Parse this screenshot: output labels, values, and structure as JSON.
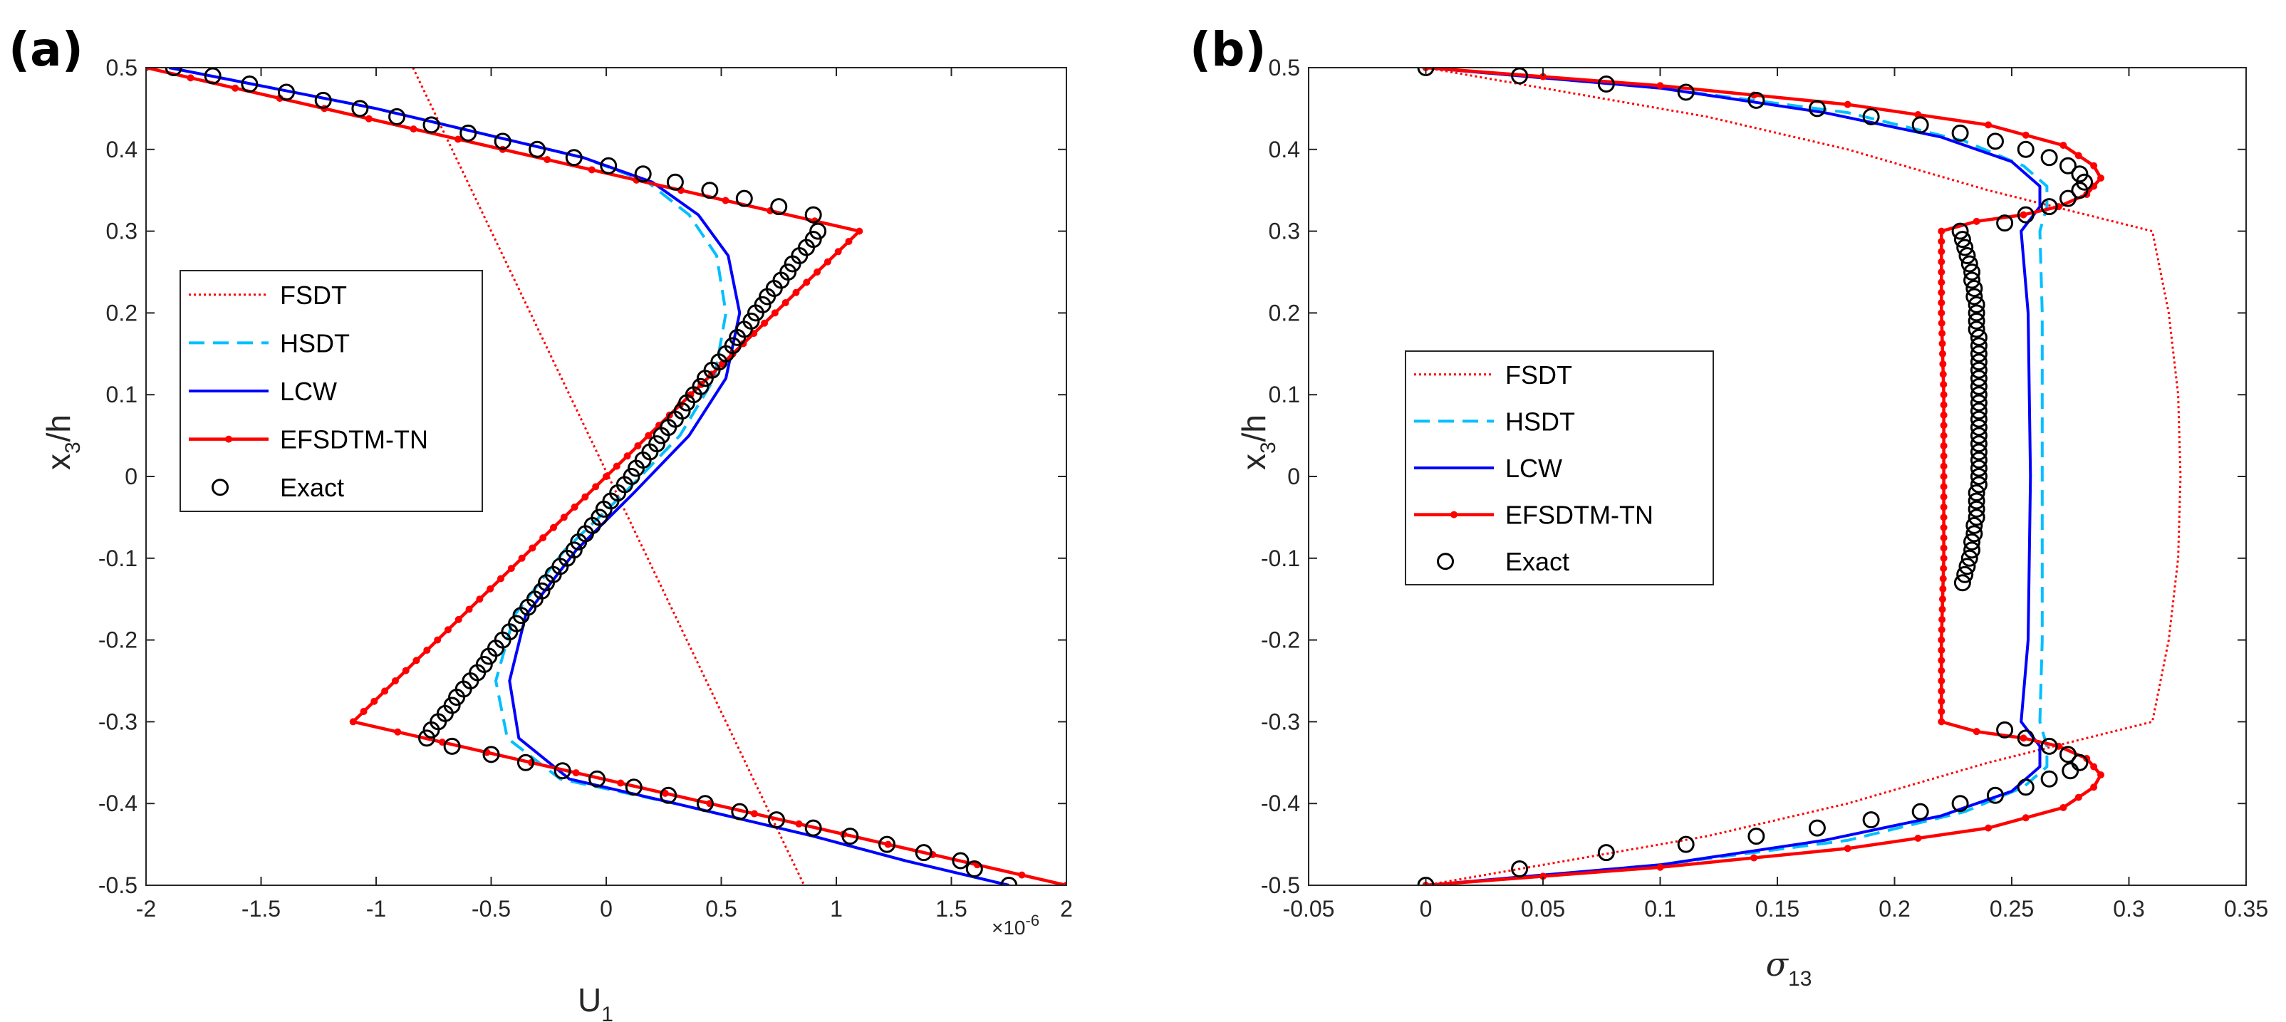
{
  "colors": {
    "FSDT": "#ff0000",
    "HSDT": "#00bfff",
    "LCW": "#0000ff",
    "EFSDTM-TN": "#ff0000",
    "Exact": "#000000"
  },
  "chart_data": [
    {
      "id": "a",
      "type": "line",
      "panel_label": "(a)",
      "xlabel": "U",
      "xlabel_sub": "1",
      "ylabel": "x",
      "ylabel_sub": "3",
      "ylabel_tail": "/h",
      "x_multiplier_base": "×10",
      "x_multiplier_exp": "-6",
      "xlim": [
        -2,
        2
      ],
      "ylim": [
        -0.5,
        0.5
      ],
      "xticks": [
        -2,
        -1.5,
        -1,
        -0.5,
        0,
        0.5,
        1,
        1.5,
        2
      ],
      "xtick_labels": [
        "-2",
        "-1.5",
        "-1",
        "-0.5",
        "0",
        "0.5",
        "1",
        "1.5",
        "2"
      ],
      "yticks": [
        -0.5,
        -0.4,
        -0.3,
        -0.2,
        -0.1,
        0,
        0.1,
        0.2,
        0.3,
        0.4,
        0.5
      ],
      "ytick_labels": [
        "-0.5",
        "-0.4",
        "-0.3",
        "-0.2",
        "-0.1",
        "0",
        "0.1",
        "0.2",
        "0.3",
        "0.4",
        "0.5"
      ],
      "legend": [
        "FSDT",
        "HSDT",
        "LCW",
        "EFSDTM-TN",
        "Exact"
      ],
      "legend_location": "middle-left",
      "series": [
        {
          "name": "FSDT",
          "style": "dotted",
          "points": [
            [
              -0.84,
              0.5
            ],
            [
              0.86,
              -0.5
            ]
          ]
        },
        {
          "name": "HSDT",
          "style": "dashed",
          "points": [
            [
              -1.9,
              0.5
            ],
            [
              -1.0,
              0.45
            ],
            [
              -0.4,
              0.41
            ],
            [
              -0.1,
              0.39
            ],
            [
              0.18,
              0.36
            ],
            [
              0.36,
              0.32
            ],
            [
              0.48,
              0.27
            ],
            [
              0.52,
              0.2
            ],
            [
              0.47,
              0.12
            ],
            [
              0.32,
              0.05
            ],
            [
              0.08,
              -0.02
            ],
            [
              -0.18,
              -0.09
            ],
            [
              -0.4,
              -0.17
            ],
            [
              -0.48,
              -0.25
            ],
            [
              -0.43,
              -0.32
            ],
            [
              -0.2,
              -0.37
            ],
            [
              0.3,
              -0.4
            ],
            [
              0.9,
              -0.44
            ],
            [
              1.3,
              -0.47
            ],
            [
              1.75,
              -0.5
            ]
          ]
        },
        {
          "name": "LCW",
          "style": "solid",
          "points": [
            [
              -1.9,
              0.5
            ],
            [
              -1.0,
              0.45
            ],
            [
              -0.4,
              0.41
            ],
            [
              -0.1,
              0.39
            ],
            [
              0.2,
              0.36
            ],
            [
              0.4,
              0.32
            ],
            [
              0.53,
              0.27
            ],
            [
              0.58,
              0.2
            ],
            [
              0.52,
              0.12
            ],
            [
              0.36,
              0.05
            ],
            [
              0.12,
              -0.02
            ],
            [
              -0.13,
              -0.09
            ],
            [
              -0.35,
              -0.17
            ],
            [
              -0.42,
              -0.25
            ],
            [
              -0.38,
              -0.32
            ],
            [
              -0.16,
              -0.37
            ],
            [
              0.3,
              -0.4
            ],
            [
              0.9,
              -0.44
            ],
            [
              1.3,
              -0.47
            ],
            [
              1.75,
              -0.5
            ]
          ]
        },
        {
          "name": "EFSDTM-TN",
          "style": "solid-dots",
          "points": [
            [
              -2,
              0.5
            ],
            [
              1.1,
              0.3
            ],
            [
              -1.1,
              -0.3
            ],
            [
              2,
              -0.5
            ]
          ]
        },
        {
          "name": "Exact",
          "style": "circles",
          "x": [
            -1.88,
            -1.71,
            -1.55,
            -1.39,
            -1.23,
            -1.07,
            -0.91,
            -0.76,
            -0.6,
            -0.45,
            -0.3,
            -0.14,
            0.01,
            0.16,
            0.3,
            0.45,
            0.6,
            0.75,
            0.9,
            0.92,
            0.9,
            0.87,
            0.84,
            0.81,
            0.79,
            0.76,
            0.73,
            0.7,
            0.68,
            0.65,
            0.63,
            0.6,
            0.57,
            0.55,
            0.52,
            0.49,
            0.46,
            0.43,
            0.41,
            0.38,
            0.35,
            0.33,
            0.3,
            0.27,
            0.24,
            0.22,
            0.19,
            0.16,
            0.13,
            0.11,
            0.08,
            0.05,
            0.02,
            -0.01,
            -0.03,
            -0.06,
            -0.09,
            -0.12,
            -0.14,
            -0.17,
            -0.2,
            -0.23,
            -0.26,
            -0.28,
            -0.31,
            -0.34,
            -0.37,
            -0.39,
            -0.42,
            -0.45,
            -0.48,
            -0.51,
            -0.53,
            -0.56,
            -0.59,
            -0.62,
            -0.65,
            -0.67,
            -0.7,
            -0.73,
            -0.76,
            -0.78,
            -0.67,
            -0.5,
            -0.35,
            -0.19,
            -0.04,
            0.12,
            0.27,
            0.43,
            0.58,
            0.74,
            0.9,
            1.06,
            1.22,
            1.38,
            1.54,
            1.6,
            1.75
          ],
          "y": [
            0.5,
            0.49,
            0.48,
            0.47,
            0.46,
            0.45,
            0.44,
            0.43,
            0.42,
            0.41,
            0.4,
            0.39,
            0.38,
            0.37,
            0.36,
            0.35,
            0.34,
            0.33,
            0.32,
            0.3,
            0.29,
            0.28,
            0.27,
            0.26,
            0.25,
            0.24,
            0.23,
            0.22,
            0.21,
            0.2,
            0.19,
            0.18,
            0.17,
            0.16,
            0.15,
            0.14,
            0.13,
            0.12,
            0.11,
            0.1,
            0.09,
            0.08,
            0.07,
            0.06,
            0.05,
            0.04,
            0.03,
            0.02,
            0.01,
            0.0,
            -0.01,
            -0.02,
            -0.03,
            -0.04,
            -0.05,
            -0.06,
            -0.07,
            -0.08,
            -0.09,
            -0.1,
            -0.11,
            -0.12,
            -0.13,
            -0.14,
            -0.15,
            -0.16,
            -0.17,
            -0.18,
            -0.19,
            -0.2,
            -0.21,
            -0.22,
            -0.23,
            -0.24,
            -0.25,
            -0.26,
            -0.27,
            -0.28,
            -0.29,
            -0.3,
            -0.31,
            -0.32,
            -0.33,
            -0.34,
            -0.35,
            -0.36,
            -0.37,
            -0.38,
            -0.39,
            -0.4,
            -0.41,
            -0.42,
            -0.43,
            -0.44,
            -0.45,
            -0.46,
            -0.47,
            -0.48,
            -0.5
          ]
        }
      ]
    },
    {
      "id": "b",
      "type": "line",
      "panel_label": "(b)",
      "xlabel": "σ",
      "xlabel_sub": "13",
      "ylabel": "x",
      "ylabel_sub": "3",
      "ylabel_tail": "/h",
      "xlim": [
        -0.05,
        0.35
      ],
      "ylim": [
        -0.5,
        0.5
      ],
      "xticks": [
        -0.05,
        0,
        0.05,
        0.1,
        0.15,
        0.2,
        0.25,
        0.3,
        0.35
      ],
      "xtick_labels": [
        "-0.05",
        "0",
        "0.05",
        "0.1",
        "0.15",
        "0.2",
        "0.25",
        "0.3",
        "0.35"
      ],
      "yticks": [
        -0.5,
        -0.4,
        -0.3,
        -0.2,
        -0.1,
        0,
        0.1,
        0.2,
        0.3,
        0.4,
        0.5
      ],
      "ytick_labels": [
        "-0.5",
        "-0.4",
        "-0.3",
        "-0.2",
        "-0.1",
        "0",
        "0.1",
        "0.2",
        "0.3",
        "0.4",
        "0.5"
      ],
      "legend": [
        "FSDT",
        "HSDT",
        "LCW",
        "EFSDTM-TN",
        "Exact"
      ],
      "legend_location": "middle-left",
      "series": [
        {
          "name": "FSDT",
          "style": "dotted",
          "points": [
            [
              0,
              0.5
            ],
            [
              0.06,
              0.47
            ],
            [
              0.12,
              0.44
            ],
            [
              0.18,
              0.4
            ],
            [
              0.24,
              0.35
            ],
            [
              0.31,
              0.3
            ],
            [
              0.317,
              0.2
            ],
            [
              0.321,
              0.1
            ],
            [
              0.322,
              0.0
            ],
            [
              0.321,
              -0.1
            ],
            [
              0.317,
              -0.2
            ],
            [
              0.31,
              -0.3
            ],
            [
              0.24,
              -0.35
            ],
            [
              0.18,
              -0.4
            ],
            [
              0.12,
              -0.44
            ],
            [
              0.06,
              -0.47
            ],
            [
              0,
              -0.5
            ]
          ]
        },
        {
          "name": "HSDT",
          "style": "dashed",
          "points": [
            [
              0,
              0.5
            ],
            [
              0.1,
              0.475
            ],
            [
              0.18,
              0.445
            ],
            [
              0.23,
              0.41
            ],
            [
              0.255,
              0.38
            ],
            [
              0.265,
              0.355
            ],
            [
              0.265,
              0.33
            ],
            [
              0.262,
              0.3
            ],
            [
              0.263,
              0.2
            ],
            [
              0.263,
              0.0
            ],
            [
              0.263,
              -0.2
            ],
            [
              0.262,
              -0.3
            ],
            [
              0.265,
              -0.33
            ],
            [
              0.265,
              -0.355
            ],
            [
              0.255,
              -0.38
            ],
            [
              0.23,
              -0.41
            ],
            [
              0.18,
              -0.445
            ],
            [
              0.1,
              -0.475
            ],
            [
              0,
              -0.5
            ]
          ]
        },
        {
          "name": "LCW",
          "style": "solid",
          "points": [
            [
              0,
              0.5
            ],
            [
              0.1,
              0.475
            ],
            [
              0.17,
              0.445
            ],
            [
              0.22,
              0.415
            ],
            [
              0.25,
              0.385
            ],
            [
              0.262,
              0.355
            ],
            [
              0.262,
              0.33
            ],
            [
              0.254,
              0.3
            ],
            [
              0.257,
              0.2
            ],
            [
              0.258,
              0.0
            ],
            [
              0.257,
              -0.2
            ],
            [
              0.254,
              -0.3
            ],
            [
              0.262,
              -0.33
            ],
            [
              0.262,
              -0.355
            ],
            [
              0.25,
              -0.385
            ],
            [
              0.22,
              -0.415
            ],
            [
              0.17,
              -0.445
            ],
            [
              0.1,
              -0.475
            ],
            [
              0,
              -0.5
            ]
          ]
        },
        {
          "name": "EFSDTM-TN",
          "style": "solid-dots",
          "points": [
            [
              0,
              0.5
            ],
            [
              0.1,
              0.478
            ],
            [
              0.18,
              0.455
            ],
            [
              0.24,
              0.43
            ],
            [
              0.272,
              0.405
            ],
            [
              0.285,
              0.38
            ],
            [
              0.288,
              0.365
            ],
            [
              0.282,
              0.345
            ],
            [
              0.27,
              0.33
            ],
            [
              0.255,
              0.32
            ],
            [
              0.235,
              0.312
            ],
            [
              0.22,
              0.3
            ],
            [
              0.22,
              0.2
            ],
            [
              0.221,
              0.1
            ],
            [
              0.221,
              0.0
            ],
            [
              0.221,
              -0.1
            ],
            [
              0.22,
              -0.2
            ],
            [
              0.22,
              -0.3
            ],
            [
              0.235,
              -0.312
            ],
            [
              0.255,
              -0.32
            ],
            [
              0.27,
              -0.33
            ],
            [
              0.282,
              -0.345
            ],
            [
              0.288,
              -0.365
            ],
            [
              0.285,
              -0.38
            ],
            [
              0.272,
              -0.405
            ],
            [
              0.24,
              -0.43
            ],
            [
              0.18,
              -0.455
            ],
            [
              0.1,
              -0.478
            ],
            [
              0,
              -0.5
            ]
          ]
        },
        {
          "name": "Exact",
          "style": "circles",
          "x": [
            0,
            0.04,
            0.077,
            0.111,
            0.141,
            0.167,
            0.19,
            0.211,
            0.228,
            0.243,
            0.256,
            0.266,
            0.274,
            0.279,
            0.281,
            0.279,
            0.274,
            0.266,
            0.256,
            0.247,
            0.228,
            0.229,
            0.23,
            0.231,
            0.232,
            0.233,
            0.233,
            0.234,
            0.234,
            0.235,
            0.235,
            0.235,
            0.235,
            0.236,
            0.236,
            0.236,
            0.236,
            0.236,
            0.236,
            0.236,
            0.236,
            0.236,
            0.236,
            0.236,
            0.236,
            0.236,
            0.236,
            0.236,
            0.236,
            0.236,
            0.236,
            0.236,
            0.235,
            0.235,
            0.235,
            0.235,
            0.234,
            0.234,
            0.233,
            0.233,
            0.232,
            0.231,
            0.23,
            0.229,
            0.247,
            0.256,
            0.266,
            0.274,
            0.279,
            0.275,
            0.266,
            0.256,
            0.243,
            0.228,
            0.211,
            0.19,
            0.167,
            0.141,
            0.111,
            0.077,
            0.04,
            0
          ],
          "y": [
            0.5,
            0.49,
            0.48,
            0.47,
            0.46,
            0.45,
            0.44,
            0.43,
            0.42,
            0.41,
            0.4,
            0.39,
            0.38,
            0.37,
            0.36,
            0.35,
            0.34,
            0.33,
            0.32,
            0.31,
            0.3,
            0.29,
            0.28,
            0.27,
            0.26,
            0.25,
            0.24,
            0.23,
            0.22,
            0.21,
            0.2,
            0.19,
            0.18,
            0.17,
            0.16,
            0.15,
            0.14,
            0.13,
            0.12,
            0.11,
            0.1,
            0.09,
            0.08,
            0.07,
            0.06,
            0.05,
            0.04,
            0.03,
            0.02,
            0.01,
            0.0,
            -0.01,
            -0.02,
            -0.03,
            -0.04,
            -0.05,
            -0.06,
            -0.07,
            -0.08,
            -0.09,
            -0.1,
            -0.11,
            -0.12,
            -0.13,
            -0.31,
            -0.32,
            -0.33,
            -0.34,
            -0.35,
            -0.36,
            -0.37,
            -0.38,
            -0.39,
            -0.4,
            -0.41,
            -0.42,
            -0.43,
            -0.44,
            -0.45,
            -0.46,
            -0.48,
            -0.5
          ]
        }
      ]
    }
  ]
}
